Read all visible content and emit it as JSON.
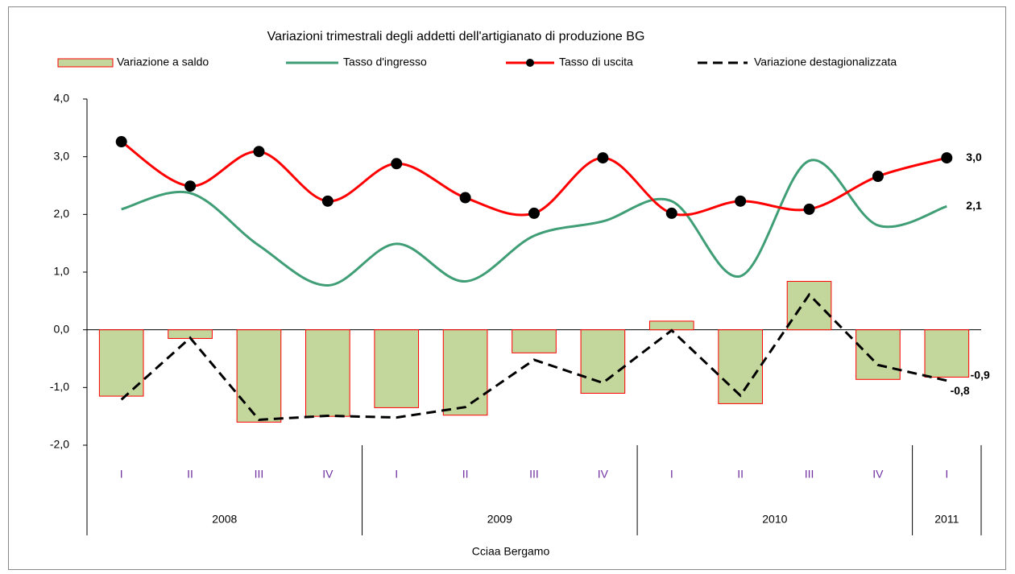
{
  "chart_data": {
    "type": "combo",
    "title": "Variazioni trimestrali degli addetti dell'artigianato di produzione BG",
    "caption": "Cciaa Bergamo",
    "groups": [
      {
        "label": "2008",
        "categories": [
          "I",
          "II",
          "III",
          "IV"
        ]
      },
      {
        "label": "2009",
        "categories": [
          "I",
          "II",
          "III",
          "IV"
        ]
      },
      {
        "label": "2010",
        "categories": [
          "I",
          "II",
          "III",
          "IV"
        ]
      },
      {
        "label": "2011",
        "categories": [
          "I"
        ]
      }
    ],
    "ylim": [
      -2,
      4
    ],
    "yticks": [
      {
        "value": -2,
        "label": "-2,0"
      },
      {
        "value": -1,
        "label": "-1,0"
      },
      {
        "value": 0,
        "label": "0,0"
      },
      {
        "value": 1,
        "label": "1,0"
      },
      {
        "value": 2,
        "label": "2,0"
      },
      {
        "value": 3,
        "label": "3,0"
      },
      {
        "value": 4,
        "label": "4,0"
      }
    ],
    "series": [
      {
        "name": "Variazione a saldo",
        "type": "bar",
        "color": "#c3d69b",
        "edge_color": "#ff0000",
        "values": [
          -1.15,
          -0.15,
          -1.6,
          -1.5,
          -1.35,
          -1.48,
          -0.4,
          -1.1,
          0.15,
          -1.28,
          0.84,
          -0.86,
          -0.82
        ],
        "value_labels": [
          null,
          null,
          null,
          null,
          null,
          null,
          null,
          null,
          null,
          null,
          null,
          null,
          "-0,8"
        ]
      },
      {
        "name": "Tasso d'ingresso",
        "type": "line",
        "smooth": true,
        "color": "#3f9e75",
        "values": [
          2.09,
          2.37,
          1.46,
          0.77,
          1.49,
          0.84,
          1.63,
          1.88,
          2.23,
          0.93,
          2.93,
          1.81,
          2.14
        ],
        "value_labels": [
          null,
          null,
          null,
          null,
          null,
          null,
          null,
          null,
          null,
          null,
          null,
          null,
          "2,1"
        ]
      },
      {
        "name": "Tasso di uscita",
        "type": "line",
        "smooth": true,
        "markers": true,
        "color": "#ff0000",
        "marker_color": "#000000",
        "values": [
          3.26,
          2.49,
          3.09,
          2.23,
          2.88,
          2.29,
          2.02,
          2.98,
          2.02,
          2.23,
          2.09,
          2.66,
          2.98
        ],
        "value_labels": [
          null,
          null,
          null,
          null,
          null,
          null,
          null,
          null,
          null,
          null,
          null,
          null,
          "3,0"
        ]
      },
      {
        "name": "Variazione destagionalizzata",
        "type": "line",
        "dashed": true,
        "color": "#000000",
        "values": [
          -1.21,
          -0.14,
          -1.56,
          -1.49,
          -1.52,
          -1.34,
          -0.52,
          -0.92,
          -0.01,
          -1.14,
          0.61,
          -0.61,
          -0.88
        ],
        "value_labels": [
          null,
          null,
          null,
          null,
          null,
          null,
          null,
          null,
          null,
          null,
          null,
          null,
          "-0,9"
        ]
      }
    ]
  }
}
